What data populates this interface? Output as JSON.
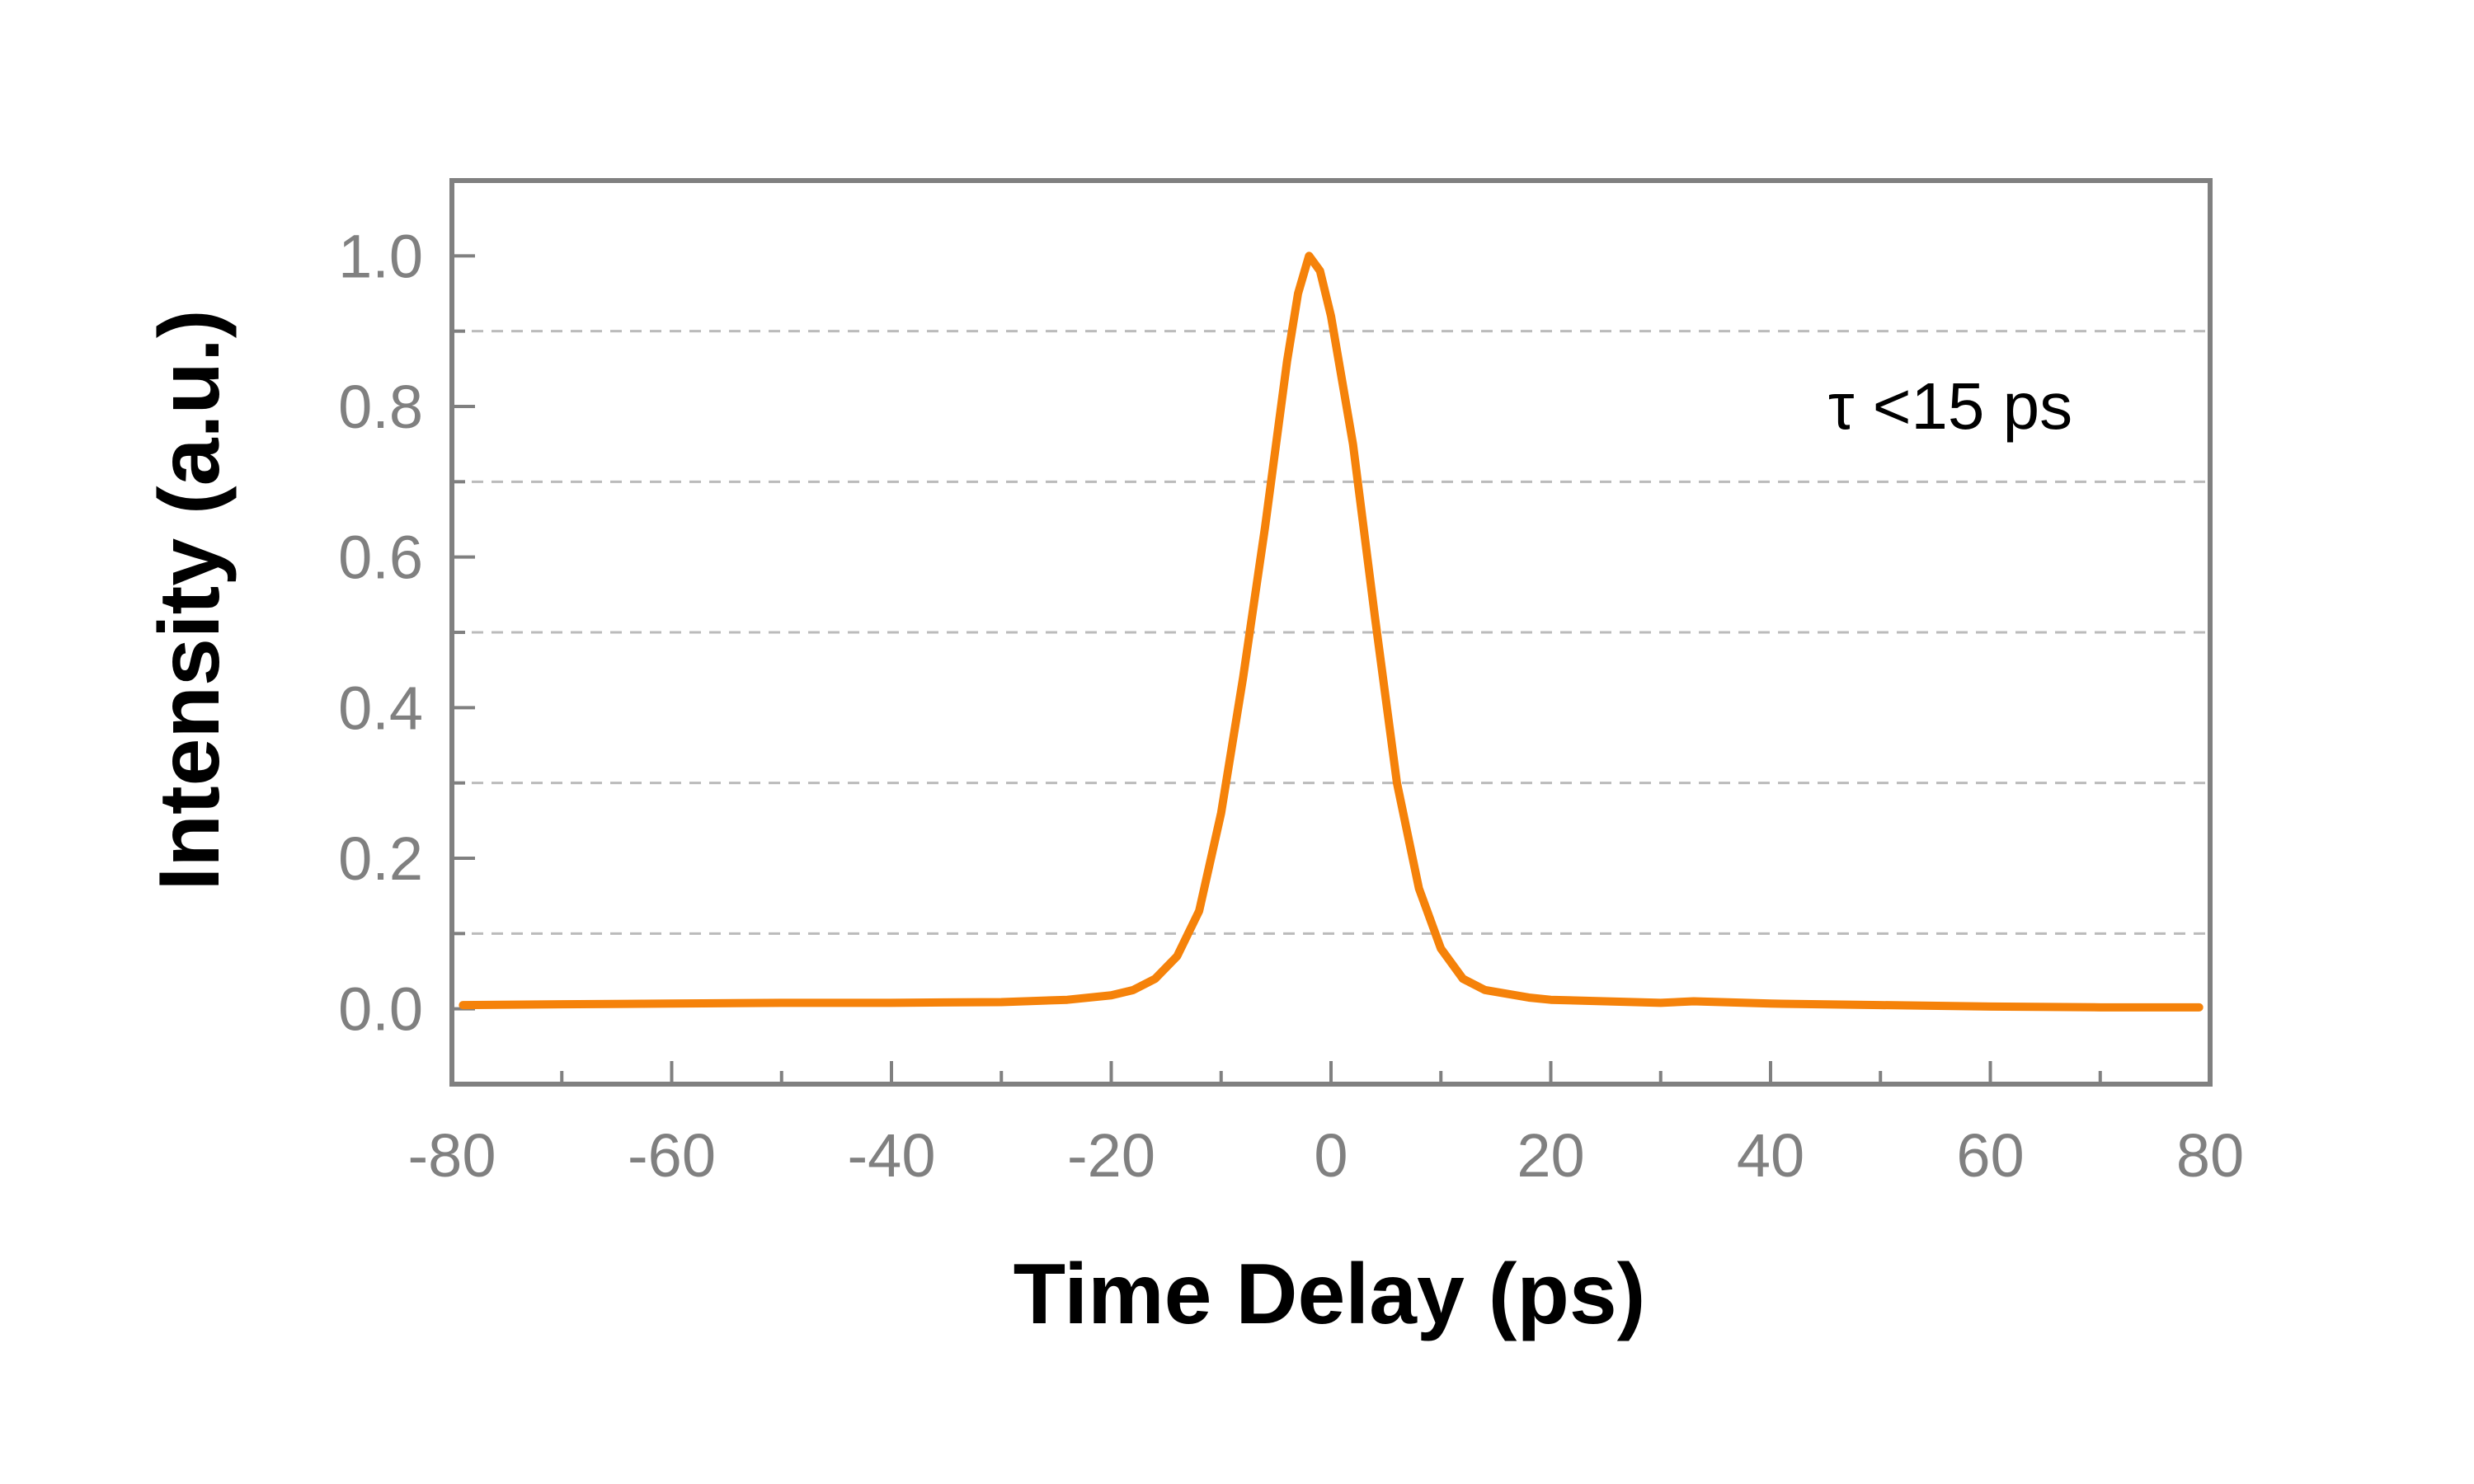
{
  "chart_data": {
    "type": "line",
    "x_label": "Time Delay (ps)",
    "y_label": "Intensity (a.u.)",
    "annotation": "τ <15 ps",
    "xlim": [
      -80,
      80
    ],
    "ylim": [
      -0.1,
      1.1
    ],
    "xticks": [
      -80,
      -60,
      -40,
      -20,
      0,
      20,
      40,
      60,
      80
    ],
    "xminorticks": [
      -70,
      -50,
      -30,
      -10,
      10,
      30,
      50,
      70
    ],
    "yticks": [
      {
        "value": 0,
        "label": "0.0"
      },
      0.2,
      0.4,
      0.6,
      0.8,
      {
        "value": 1,
        "label": "1.0"
      }
    ],
    "yminorticks": [
      0.1,
      0.3,
      0.5,
      0.7,
      0.9
    ],
    "minor_grid": true,
    "x": [
      -79,
      -70,
      -60,
      -50,
      -40,
      -30,
      -24,
      -20,
      -18,
      -16,
      -14,
      -12,
      -10,
      -8,
      -6,
      -4,
      -3,
      -2,
      -1,
      0,
      2,
      4,
      6,
      8,
      10,
      12,
      14,
      18,
      20,
      30,
      33,
      40,
      50,
      60,
      70,
      79
    ],
    "series": [
      {
        "color": "#f5820a",
        "values": [
          0.005,
          0.006,
          0.007,
          0.008,
          0.008,
          0.009,
          0.012,
          0.018,
          0.025,
          0.04,
          0.07,
          0.13,
          0.26,
          0.44,
          0.64,
          0.86,
          0.95,
          1.0,
          0.98,
          0.92,
          0.75,
          0.52,
          0.3,
          0.16,
          0.08,
          0.04,
          0.025,
          0.015,
          0.012,
          0.008,
          0.01,
          0.007,
          0.005,
          0.003,
          0.002,
          0.002
        ]
      }
    ]
  }
}
